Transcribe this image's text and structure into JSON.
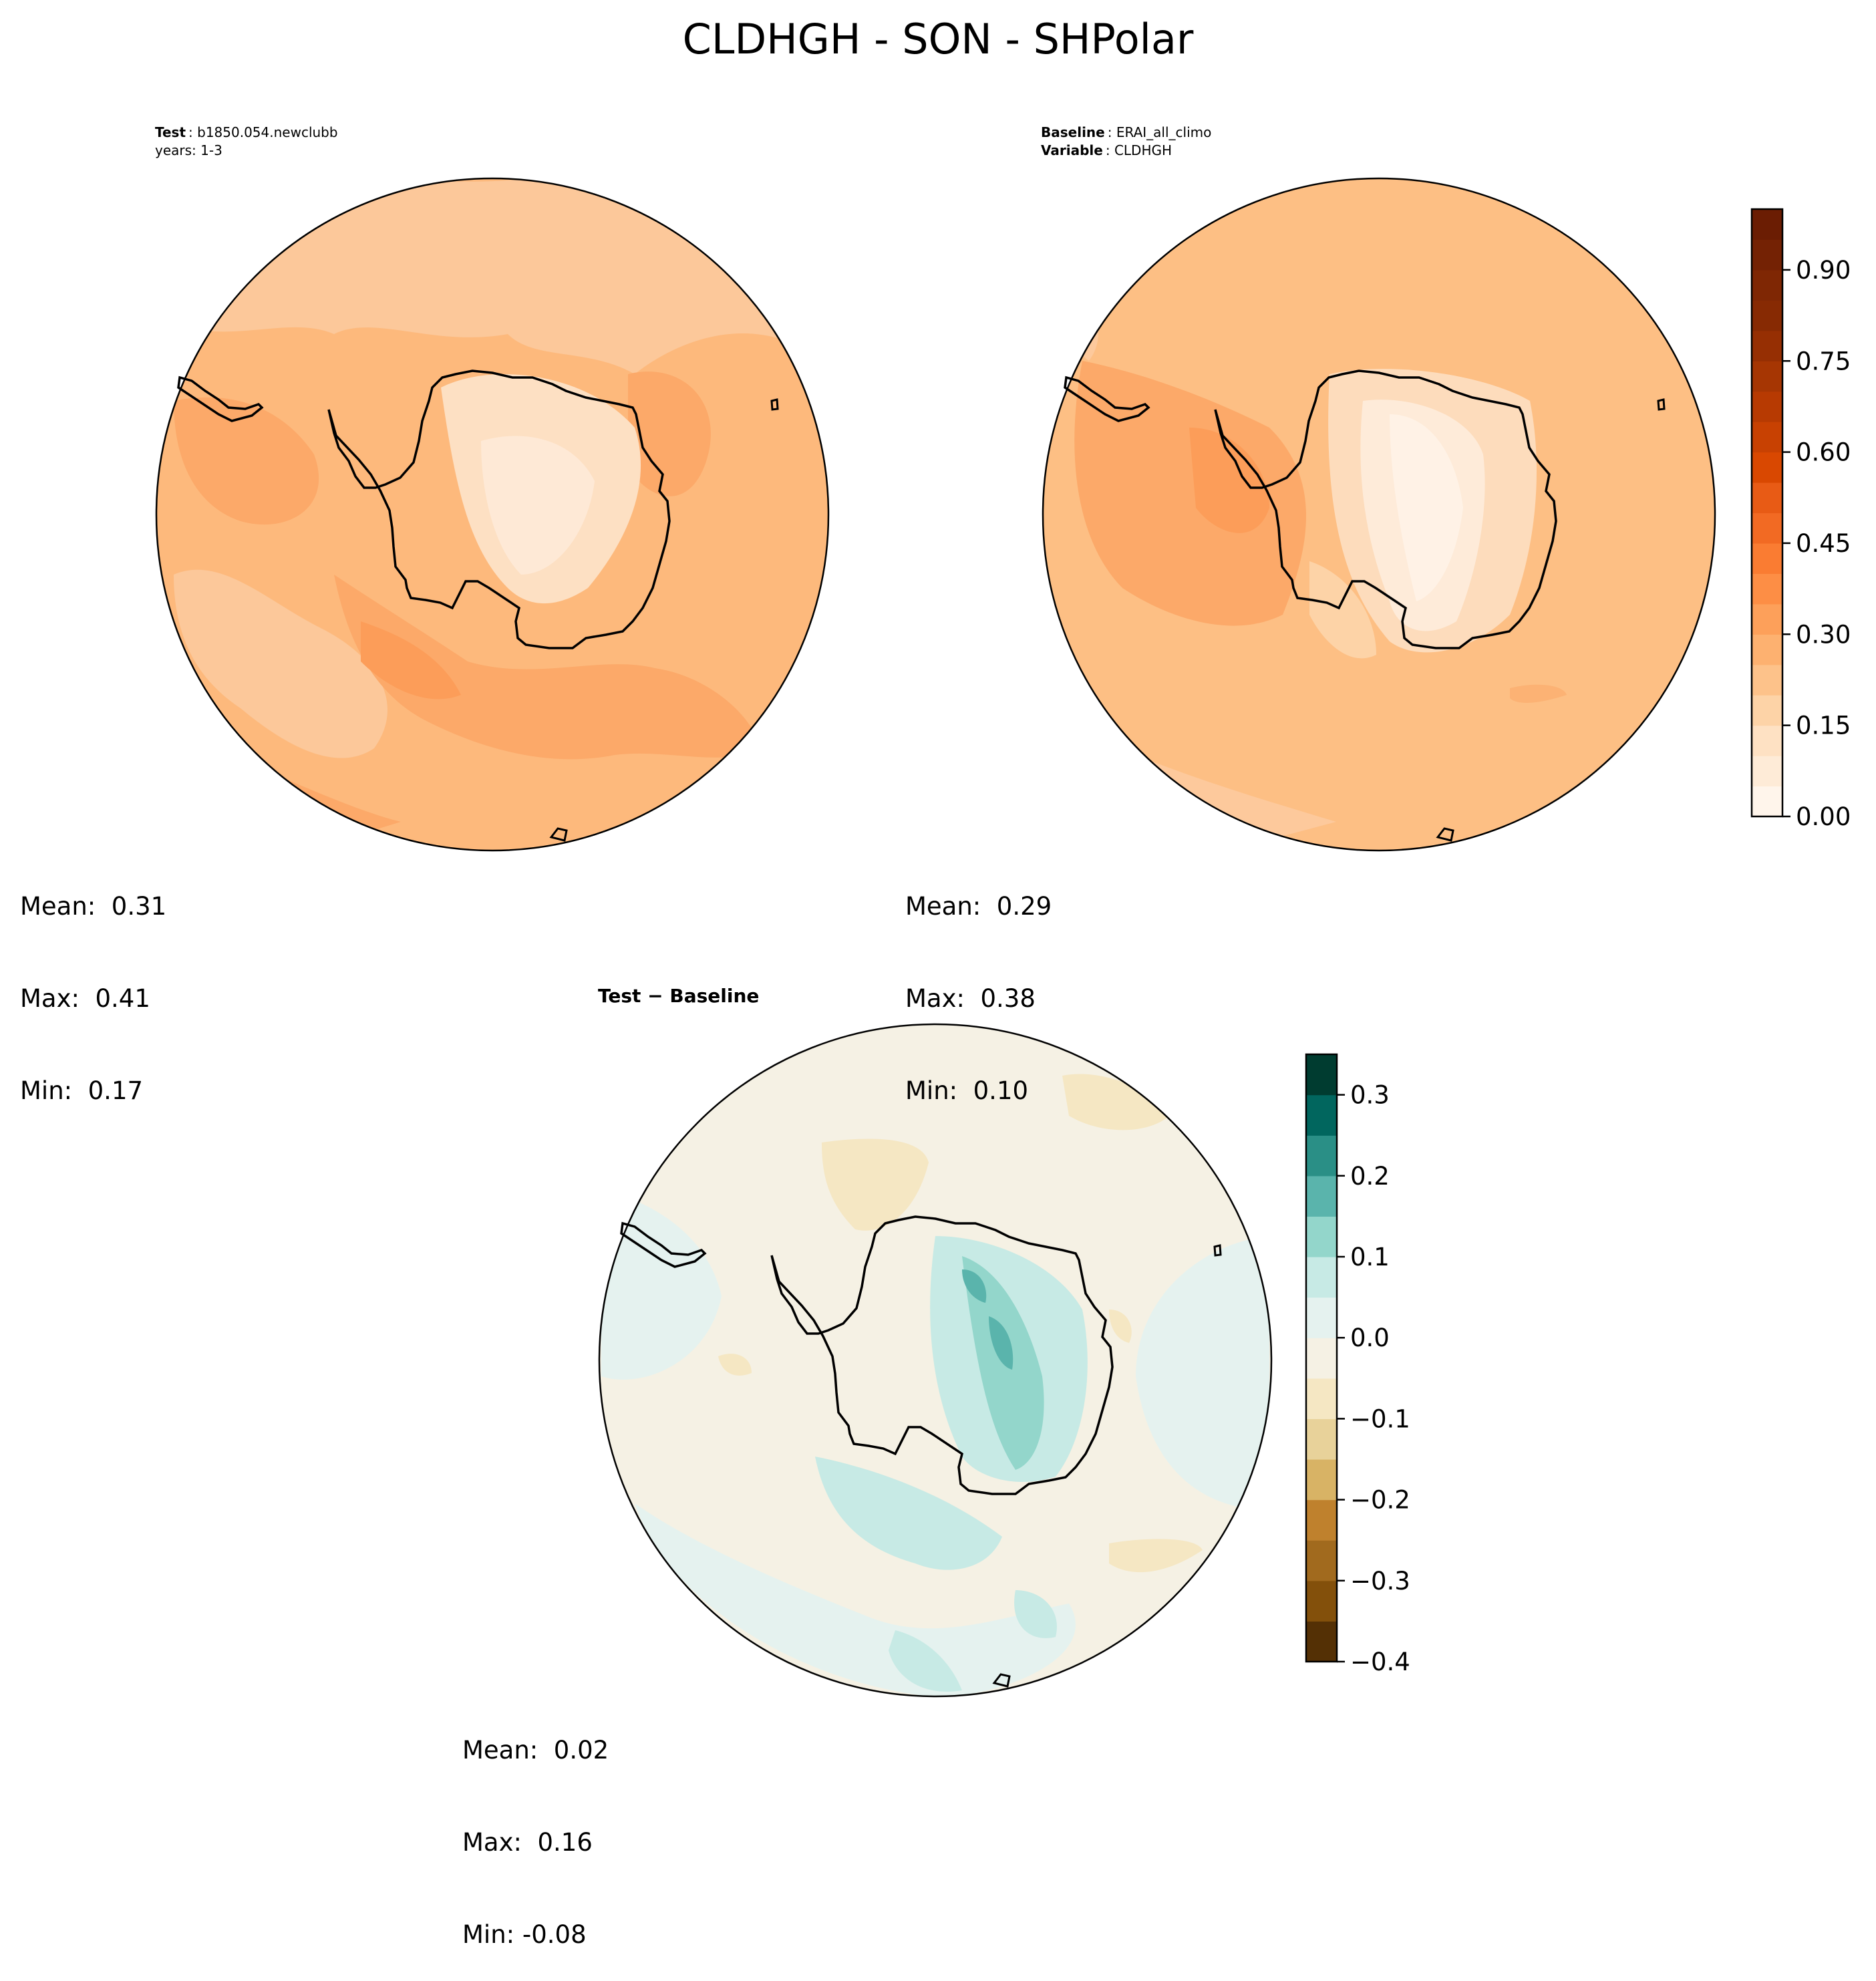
{
  "title": "CLDHGH - SON - SHPolar",
  "panels": {
    "test": {
      "label_key": "Test",
      "label_value": "b1850.054.newclubb",
      "years": "years: 1-3",
      "mean": "Mean:  0.31",
      "max": "Max:  0.41",
      "min": "Min:  0.17"
    },
    "baseline": {
      "label_key": "Baseline",
      "label_value": "ERAI_all_climo",
      "variable_key": "Variable",
      "variable_value": "CLDHGH",
      "mean": "Mean:  0.29",
      "max": "Max:  0.38",
      "min": "Min:  0.10"
    },
    "diff": {
      "label": "Test − Baseline",
      "mean": "Mean:  0.02",
      "max": "Max:  0.16",
      "min": "Min: -0.08"
    }
  },
  "chart_data": [
    {
      "type": "heatmap",
      "name": "Test",
      "projection": "south polar stereographic",
      "summary": {
        "mean": 0.31,
        "max": 0.41,
        "min": 0.17
      },
      "colormap": "Oranges",
      "levels": [
        0.0,
        0.05,
        0.1,
        0.15,
        0.2,
        0.25,
        0.3,
        0.35,
        0.4,
        0.45,
        0.5,
        0.55,
        0.6,
        0.65,
        0.7,
        0.75,
        0.8,
        0.85,
        0.9,
        0.95,
        1.0
      ]
    },
    {
      "type": "heatmap",
      "name": "Baseline",
      "projection": "south polar stereographic",
      "summary": {
        "mean": 0.29,
        "max": 0.38,
        "min": 0.1
      },
      "colormap": "Oranges",
      "levels": [
        0.0,
        0.05,
        0.1,
        0.15,
        0.2,
        0.25,
        0.3,
        0.35,
        0.4,
        0.45,
        0.5,
        0.55,
        0.6,
        0.65,
        0.7,
        0.75,
        0.8,
        0.85,
        0.9,
        0.95,
        1.0
      ],
      "colorbar": {
        "range": [
          0.0,
          1.0
        ],
        "ticks": [
          0.0,
          0.15,
          0.3,
          0.45,
          0.6,
          0.75,
          0.9
        ],
        "tick_labels": [
          "0.00",
          "0.15",
          "0.30",
          "0.45",
          "0.60",
          "0.75",
          "0.90"
        ],
        "colors": [
          "#fff5eb",
          "#feebd7",
          "#fee1c3",
          "#fdd3a7",
          "#fdc28a",
          "#fdb170",
          "#fda05a",
          "#fd8e45",
          "#fa7c32",
          "#f26a23",
          "#e85b15",
          "#d94801",
          "#c84102",
          "#b73a02",
          "#a63603",
          "#962f03",
          "#872a03",
          "#7f2704",
          "#742204",
          "#6b1d03"
        ]
      }
    },
    {
      "type": "heatmap",
      "name": "Test - Baseline",
      "projection": "south polar stereographic",
      "summary": {
        "mean": 0.02,
        "max": 0.16,
        "min": -0.08
      },
      "colormap": "BrBG",
      "levels": [
        -0.4,
        -0.35,
        -0.3,
        -0.25,
        -0.2,
        -0.15,
        -0.1,
        -0.05,
        0.0,
        0.05,
        0.1,
        0.15,
        0.2,
        0.25,
        0.3,
        0.35
      ],
      "colorbar": {
        "range": [
          -0.4,
          0.35
        ],
        "ticks": [
          -0.4,
          -0.3,
          -0.2,
          -0.1,
          0.0,
          0.1,
          0.2,
          0.3
        ],
        "tick_labels": [
          "−0.4",
          "−0.3",
          "−0.2",
          "−0.1",
          "0.0",
          "0.1",
          "0.2",
          "0.3"
        ],
        "colors": [
          "#543005",
          "#83500b",
          "#a16a1e",
          "#bf812d",
          "#d8b365",
          "#e8d29a",
          "#f5e7c3",
          "#f5f1e4",
          "#e5f2ef",
          "#c7eae5",
          "#93d6cb",
          "#5ab4ac",
          "#2a8f86",
          "#01665e",
          "#003c30"
        ]
      }
    }
  ]
}
